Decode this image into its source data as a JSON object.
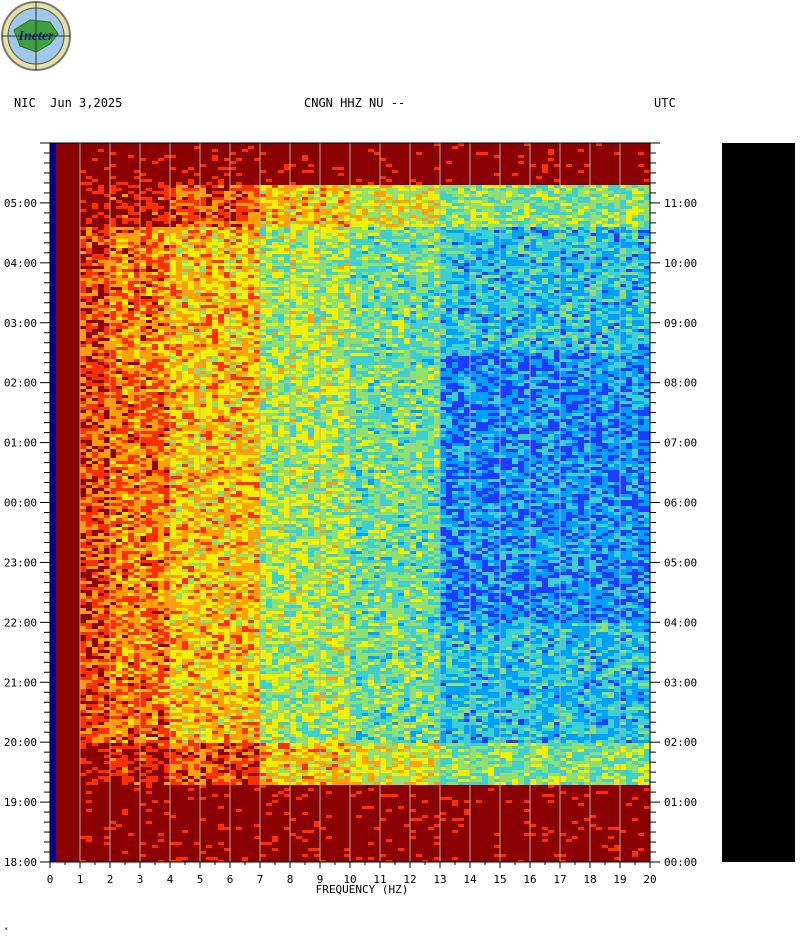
{
  "header": {
    "left": "NIC  Jun 3,2025",
    "center": "CNGN HHZ NU --",
    "right": "UTC",
    "logo_text": "Ineter"
  },
  "footer_mark": "*",
  "chart_data": {
    "type": "heatmap",
    "title": "",
    "xlabel": "FREQUENCY (HZ)",
    "ylabel": "",
    "x_ticks": [
      "0",
      "1",
      "2",
      "3",
      "4",
      "5",
      "6",
      "7",
      "8",
      "9",
      "10",
      "11",
      "12",
      "13",
      "14",
      "15",
      "16",
      "17",
      "18",
      "19",
      "20"
    ],
    "xlim": [
      0,
      20
    ],
    "left_time_ticks": [
      "18:00",
      "19:00",
      "20:00",
      "21:00",
      "22:00",
      "23:00",
      "00:00",
      "01:00",
      "02:00",
      "03:00",
      "04:00",
      "05:00"
    ],
    "right_time_ticks": [
      "00:00",
      "01:00",
      "02:00",
      "03:00",
      "04:00",
      "05:00",
      "06:00",
      "07:00",
      "08:00",
      "09:00",
      "10:00",
      "11:00"
    ],
    "grid": "vertical lines at each 1 Hz",
    "colormap": [
      "#00008b",
      "#1e3cff",
      "#00a0ff",
      "#3cd0d0",
      "#90e070",
      "#f0f000",
      "#ffa000",
      "#ff3000",
      "#8b0000"
    ],
    "colorbar_color": "#000000",
    "frame_color": "#0000aa"
  }
}
